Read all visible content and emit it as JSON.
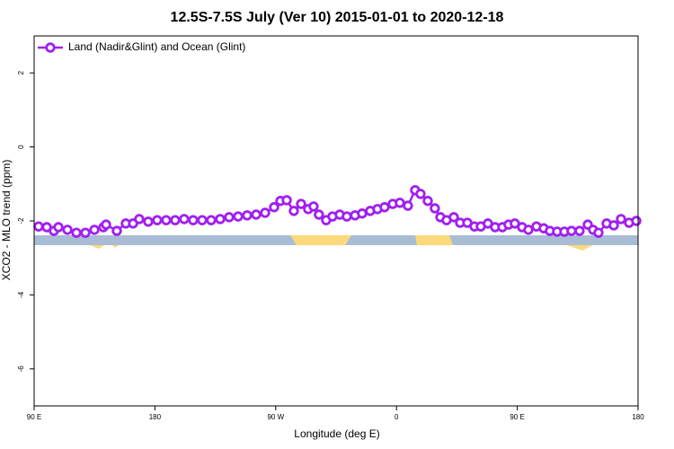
{
  "chart_data": {
    "type": "line",
    "title": "12.5S-7.5S July (Ver 10)   2015-01-01 to 2020-12-18",
    "xlabel": "Longitude (deg E)",
    "ylabel": "XCO2 - MLO trend (ppm)",
    "xlim": [
      90,
      540
    ],
    "ylim": [
      -7,
      3
    ],
    "xticks": [
      {
        "value": 90,
        "label": "90 E"
      },
      180,
      {
        "value": 270,
        "label": "90 W"
      },
      {
        "value": 360,
        "label": "0"
      },
      {
        "value": 450,
        "label": "90 E"
      },
      {
        "value": 540,
        "label": "180"
      }
    ],
    "yticks": [
      2,
      0,
      -2,
      -4,
      -6
    ],
    "legend": "upper left",
    "x": [
      93.3,
      99.4,
      104.7,
      108.1,
      114.8,
      121.5,
      128.2,
      134.9,
      141.6,
      143.6,
      151.6,
      158.3,
      163.7,
      168.3,
      175.0,
      181.7,
      188.4,
      195.1,
      201.8,
      208.5,
      215.2,
      221.9,
      228.6,
      235.3,
      242.0,
      248.7,
      255.4,
      262.1,
      268.8,
      273.5,
      278.2,
      283.5,
      288.9,
      294.2,
      298.2,
      302.2,
      307.6,
      312.3,
      317.7,
      323.0,
      329.1,
      334.4,
      340.4,
      345.8,
      351.1,
      357.2,
      362.5,
      368.5,
      373.9,
      377.9,
      383.3,
      388.6,
      392.7,
      397.3,
      402.7,
      407.4,
      412.8,
      418.1,
      422.8,
      428.1,
      433.5,
      438.9,
      443.5,
      448.2,
      453.6,
      458.3,
      464.3,
      469.7,
      474.3,
      479.7,
      485.1,
      490.4,
      496.4,
      502.5,
      506.5,
      510.5,
      516.6,
      521.9,
      527.3,
      533.3,
      538.7
    ],
    "series": [
      {
        "name": "Land (Nadir&Glint) and Ocean (Glint)",
        "color": "#a020f0",
        "values": [
          -2.15,
          -2.17,
          -2.27,
          -2.17,
          -2.24,
          -2.32,
          -2.32,
          -2.24,
          -2.17,
          -2.1,
          -2.27,
          -2.07,
          -2.07,
          -1.95,
          -2.02,
          -1.98,
          -1.98,
          -1.98,
          -1.95,
          -1.98,
          -1.98,
          -1.98,
          -1.95,
          -1.9,
          -1.88,
          -1.85,
          -1.83,
          -1.78,
          -1.63,
          -1.46,
          -1.44,
          -1.73,
          -1.54,
          -1.68,
          -1.61,
          -1.83,
          -1.98,
          -1.88,
          -1.83,
          -1.88,
          -1.85,
          -1.8,
          -1.73,
          -1.68,
          -1.63,
          -1.54,
          -1.51,
          -1.59,
          -1.17,
          -1.27,
          -1.46,
          -1.66,
          -1.9,
          -1.98,
          -1.9,
          -2.05,
          -2.05,
          -2.15,
          -2.15,
          -2.07,
          -2.17,
          -2.17,
          -2.1,
          -2.07,
          -2.17,
          -2.24,
          -2.15,
          -2.2,
          -2.27,
          -2.29,
          -2.29,
          -2.27,
          -2.27,
          -2.1,
          -2.24,
          -2.32,
          -2.07,
          -2.12,
          -1.95,
          -2.05,
          -2.0
        ]
      }
    ]
  }
}
